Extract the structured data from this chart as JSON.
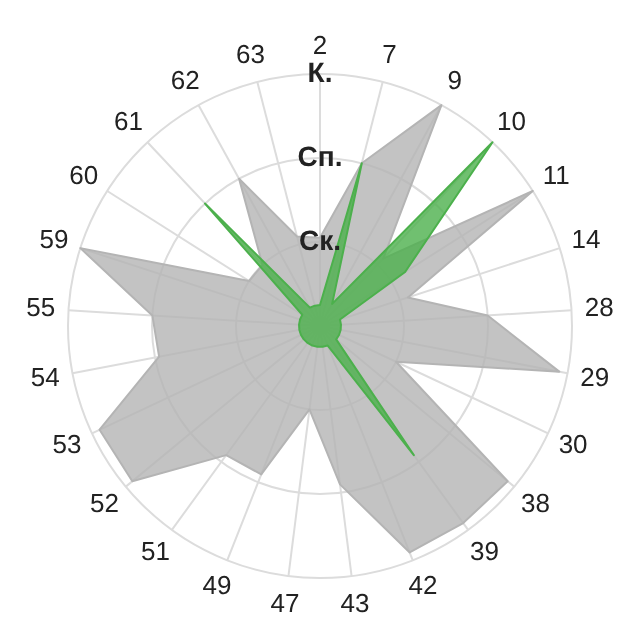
{
  "chart_data": {
    "type": "radar",
    "categories": [
      "2",
      "7",
      "9",
      "10",
      "11",
      "14",
      "28",
      "29",
      "30",
      "38",
      "39",
      "42",
      "43",
      "47",
      "49",
      "51",
      "52",
      "53",
      "54",
      "55",
      "59",
      "60",
      "61",
      "62",
      "63"
    ],
    "series": [
      {
        "color": "#b4b4b4",
        "values": [
          1.05,
          2.0,
          3,
          1.1,
          3,
          1.1,
          2.0,
          2.9,
          1.0,
          2.9,
          2.9,
          2.9,
          1.9,
          1.0,
          1.9,
          1.9,
          2.9,
          2.9,
          1.95,
          2.0,
          3,
          1.0,
          1.0,
          2.0,
          1.1
        ]
      },
      {
        "color": "#4cb04c",
        "values": [
          0.25,
          2.0,
          0.3,
          3,
          1.2,
          0.25,
          0.25,
          0.25,
          0.25,
          0.25,
          1.9,
          0.25,
          0.25,
          0.25,
          0.25,
          0.25,
          0.25,
          0.25,
          0.25,
          0.25,
          0.25,
          0.25,
          2.0,
          0.25,
          0.25
        ]
      }
    ],
    "ylim": [
      0,
      3
    ],
    "yticks": [
      {
        "value": 1,
        "label": "Ск."
      },
      {
        "value": 2,
        "label": "Сп."
      },
      {
        "value": 3,
        "label": "К."
      }
    ],
    "grid": true
  }
}
